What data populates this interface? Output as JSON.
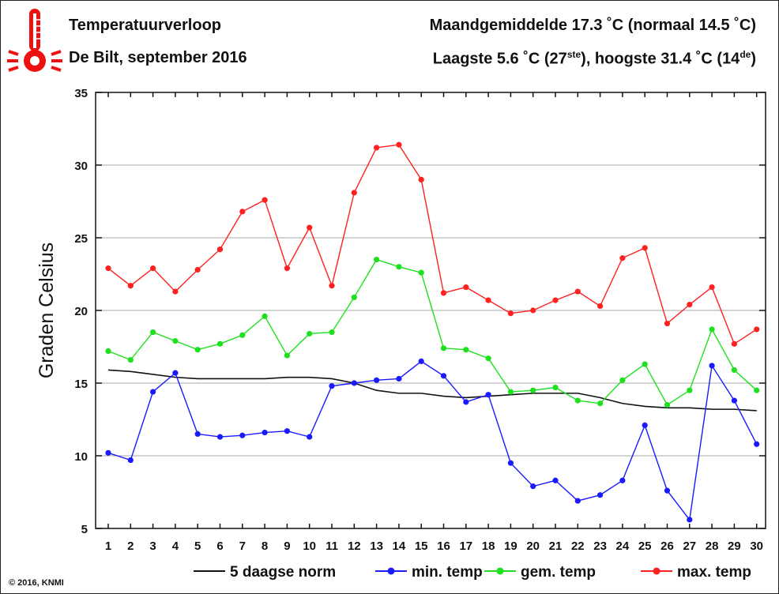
{
  "header": {
    "title": "Temperatuurverloop",
    "subtitle": "De Bilt, september 2016",
    "monthly_avg_label": "Maandgemiddelde 17.3 ˚C (normaal 14.5 ˚C)",
    "extremes_prefix": "Laagste 5.6 ˚C (27",
    "extremes_low_suffix": "ste",
    "extremes_middle": "), hoogste 31.4 ˚C (14",
    "extremes_high_suffix": "de",
    "extremes_end": ")"
  },
  "footer": {
    "copyright": "© 2016, KNMI"
  },
  "icons": {
    "logo": "thermometer-icon"
  },
  "colors": {
    "norm": "#111111",
    "min": "#1a1aff",
    "mean": "#1ee01e",
    "max": "#ff2020",
    "grid": "#aaaaaa",
    "thermometer": "#ee1111"
  },
  "chart_data": {
    "type": "line",
    "title": "Temperatuurverloop",
    "subtitle": "De Bilt, september 2016",
    "xlabel": "",
    "ylabel": "Graden Celsius",
    "xlim": [
      1,
      30
    ],
    "ylim": [
      5,
      35
    ],
    "yticks": [
      5,
      10,
      15,
      20,
      25,
      30,
      35
    ],
    "x": [
      1,
      2,
      3,
      4,
      5,
      6,
      7,
      8,
      9,
      10,
      11,
      12,
      13,
      14,
      15,
      16,
      17,
      18,
      19,
      20,
      21,
      22,
      23,
      24,
      25,
      26,
      27,
      28,
      29,
      30
    ],
    "grid": true,
    "legend_position": "bottom",
    "series": [
      {
        "name": "5 daagse norm",
        "key": "norm",
        "markers": false,
        "values": [
          15.9,
          15.8,
          15.6,
          15.4,
          15.3,
          15.3,
          15.3,
          15.3,
          15.4,
          15.4,
          15.3,
          15.0,
          14.5,
          14.3,
          14.3,
          14.1,
          14.0,
          14.1,
          14.2,
          14.3,
          14.3,
          14.3,
          14.0,
          13.6,
          13.4,
          13.3,
          13.3,
          13.2,
          13.2,
          13.1
        ]
      },
      {
        "name": "min. temp",
        "key": "min",
        "markers": true,
        "values": [
          10.2,
          9.7,
          14.4,
          15.7,
          11.5,
          11.3,
          11.4,
          11.6,
          11.7,
          11.3,
          14.8,
          15.0,
          15.2,
          15.3,
          16.5,
          15.5,
          13.7,
          14.2,
          9.5,
          7.9,
          8.3,
          6.9,
          7.3,
          8.3,
          12.1,
          7.6,
          5.6,
          16.2,
          13.8,
          10.8
        ]
      },
      {
        "name": "gem. temp",
        "key": "mean",
        "markers": true,
        "values": [
          17.2,
          16.6,
          18.5,
          17.9,
          17.3,
          17.7,
          18.3,
          19.6,
          16.9,
          18.4,
          18.5,
          20.9,
          23.5,
          23.0,
          22.6,
          17.4,
          17.3,
          16.7,
          14.4,
          14.5,
          14.7,
          13.8,
          13.6,
          15.2,
          16.3,
          13.5,
          14.5,
          18.7,
          15.9,
          14.5
        ]
      },
      {
        "name": "max. temp",
        "key": "max",
        "markers": true,
        "values": [
          22.9,
          21.7,
          22.9,
          21.3,
          22.8,
          24.2,
          26.8,
          27.6,
          22.9,
          25.7,
          21.7,
          28.1,
          31.2,
          31.4,
          29.0,
          21.2,
          21.6,
          20.7,
          19.8,
          20.0,
          20.7,
          21.3,
          20.3,
          23.6,
          24.3,
          19.1,
          20.4,
          21.6,
          17.7,
          18.7
        ]
      }
    ]
  }
}
